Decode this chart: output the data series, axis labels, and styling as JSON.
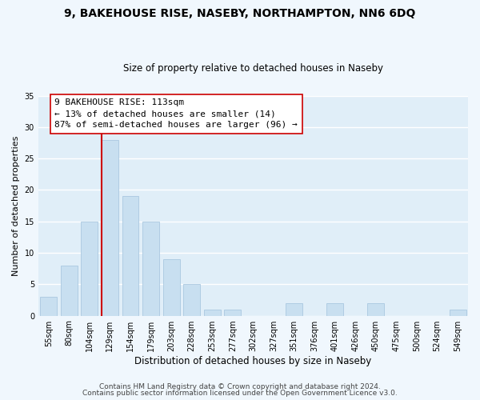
{
  "title1": "9, BAKEHOUSE RISE, NASEBY, NORTHAMPTON, NN6 6DQ",
  "title2": "Size of property relative to detached houses in Naseby",
  "xlabel": "Distribution of detached houses by size in Naseby",
  "ylabel": "Number of detached properties",
  "bar_color": "#c8dff0",
  "bar_edge_color": "#aac8e0",
  "categories": [
    "55sqm",
    "80sqm",
    "104sqm",
    "129sqm",
    "154sqm",
    "179sqm",
    "203sqm",
    "228sqm",
    "253sqm",
    "277sqm",
    "302sqm",
    "327sqm",
    "351sqm",
    "376sqm",
    "401sqm",
    "426sqm",
    "450sqm",
    "475sqm",
    "500sqm",
    "524sqm",
    "549sqm"
  ],
  "values": [
    3,
    8,
    15,
    28,
    19,
    15,
    9,
    5,
    1,
    1,
    0,
    0,
    2,
    0,
    2,
    0,
    2,
    0,
    0,
    0,
    1
  ],
  "vline_color": "#cc0000",
  "annotation_text": "9 BAKEHOUSE RISE: 113sqm\n← 13% of detached houses are smaller (14)\n87% of semi-detached houses are larger (96) →",
  "annotation_box_color": "#ffffff",
  "annotation_box_edge": "#cc0000",
  "ylim": [
    0,
    35
  ],
  "yticks": [
    0,
    5,
    10,
    15,
    20,
    25,
    30,
    35
  ],
  "footer1": "Contains HM Land Registry data © Crown copyright and database right 2024.",
  "footer2": "Contains public sector information licensed under the Open Government Licence v3.0.",
  "background_color": "#f0f7fd",
  "plot_bg_color": "#e0eef8",
  "grid_color": "#ffffff",
  "title1_fontsize": 10,
  "title2_fontsize": 8.5,
  "xlabel_fontsize": 8.5,
  "ylabel_fontsize": 8,
  "tick_fontsize": 7,
  "footer_fontsize": 6.5,
  "annotation_fontsize": 8
}
